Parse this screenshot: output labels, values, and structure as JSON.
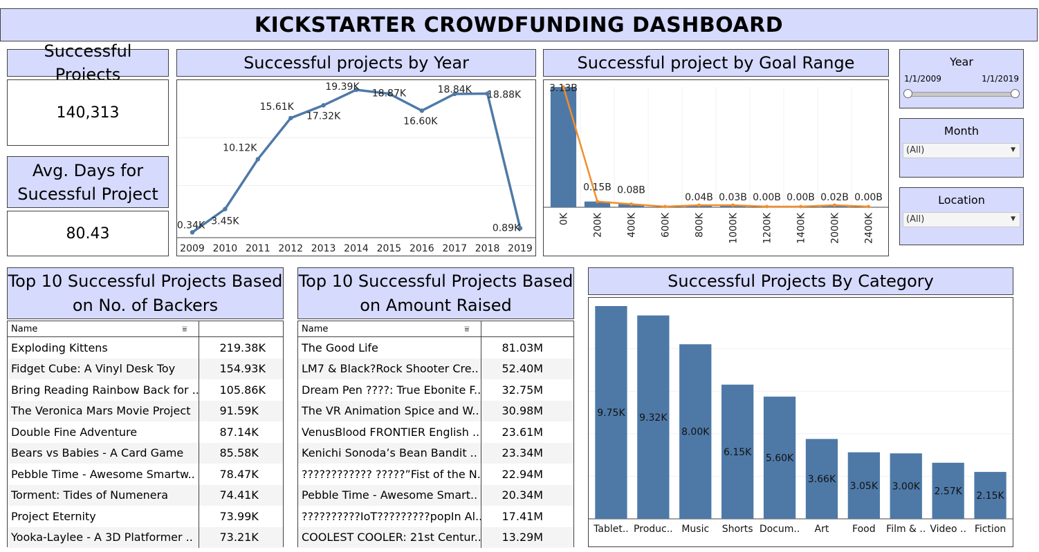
{
  "title": "KICKSTARTER CROWDFUNDING DASHBOARD",
  "kpis": {
    "successful_projects_label": "Successful Projects",
    "successful_projects_value": "140,313",
    "avg_days_label_line1": "Avg. Days for",
    "avg_days_label_line2": "Sucessful Project",
    "avg_days_value": "80.43"
  },
  "year_chart_title": "Successful projects by Year",
  "goal_chart_title": "Successful project by Goal Range",
  "category_chart_title": "Successful Projects By Category",
  "filters": {
    "year": {
      "label": "Year",
      "start": "1/1/2009",
      "end": "1/1/2019"
    },
    "month": {
      "label": "Month",
      "value": "(All)"
    },
    "location": {
      "label": "Location",
      "value": "(All)"
    }
  },
  "tables": {
    "backers": {
      "title_line1": "Top 10 Successful Projects Based",
      "title_line2": "on No. of Backers",
      "column_name": "Name",
      "rows": [
        {
          "name": "Exploding Kittens",
          "value": "219.38K"
        },
        {
          "name": "Fidget Cube: A Vinyl Desk Toy",
          "value": "154.93K"
        },
        {
          "name": "Bring Reading Rainbow Back for ..",
          "value": "105.86K"
        },
        {
          "name": "The Veronica Mars Movie Project",
          "value": "91.59K"
        },
        {
          "name": "Double Fine Adventure",
          "value": "87.14K"
        },
        {
          "name": "Bears vs Babies - A Card Game",
          "value": "85.58K"
        },
        {
          "name": "Pebble Time - Awesome Smartw..",
          "value": "78.47K"
        },
        {
          "name": "Torment: Tides of Numenera",
          "value": "74.41K"
        },
        {
          "name": "Project Eternity",
          "value": "73.99K"
        },
        {
          "name": "Yooka-Laylee - A 3D Platformer ..",
          "value": "73.21K"
        }
      ]
    },
    "amount": {
      "title_line1": "Top 10 Successful Projects Based",
      "title_line2": "on Amount Raised",
      "column_name": "Name",
      "rows": [
        {
          "name": "The Good Life",
          "value": "81.03M"
        },
        {
          "name": "LM7 & Black?Rock Shooter Cre..",
          "value": "52.40M"
        },
        {
          "name": "Dream Pen ????: True Ebonite F..",
          "value": "32.75M"
        },
        {
          "name": "The VR Animation Spice and W..",
          "value": "30.98M"
        },
        {
          "name": "VenusBlood FRONTIER English ..",
          "value": "23.61M"
        },
        {
          "name": "Kenichi Sonoda’s Bean Bandit ..",
          "value": "23.34M"
        },
        {
          "name": "???????????? ?????”Fist of the N..",
          "value": "22.94M"
        },
        {
          "name": "Pebble Time - Awesome Smart..",
          "value": "20.34M"
        },
        {
          "name": "??????????IoT?????????popIn Al..",
          "value": "17.41M"
        },
        {
          "name": "COOLEST COOLER: 21st Centur..",
          "value": "13.29M"
        }
      ]
    }
  },
  "colors": {
    "bar": "#4e79a7",
    "line": "#f28e2b",
    "header_bg": "#d6dafd"
  },
  "chart_data": [
    {
      "type": "line",
      "title": "Successful projects by Year",
      "x": [
        "2009",
        "2010",
        "2011",
        "2012",
        "2013",
        "2014",
        "2015",
        "2016",
        "2017",
        "2018",
        "2019"
      ],
      "values": [
        0.34,
        3.45,
        10.12,
        15.61,
        17.32,
        19.39,
        18.87,
        16.6,
        18.84,
        18.88,
        0.89
      ],
      "labels": [
        "0.34K",
        "3.45K",
        "10.12K",
        "15.61K",
        "17.32K",
        "19.39K",
        "18.87K",
        "16.60K",
        "18.84K",
        "18.88K",
        "0.89K"
      ],
      "unit": "K",
      "ylim": [
        0,
        19.39
      ],
      "grid": true
    },
    {
      "type": "bar",
      "title": "Successful project by Goal Range",
      "categories": [
        "0K",
        "200K",
        "400K",
        "600K",
        "800K",
        "1000K",
        "1200K",
        "1400K",
        "2000K",
        "2400K"
      ],
      "values": [
        3.13,
        0.15,
        0.08,
        0.0,
        0.04,
        0.03,
        0.0,
        0.0,
        0.02,
        0.0
      ],
      "labels": [
        "3.13B",
        "0.15B",
        "0.08B",
        "",
        "0.04B",
        "0.03B",
        "0.00B",
        "0.00B",
        "0.02B",
        "0.00B"
      ],
      "unit": "B",
      "overlay": "line",
      "grid": true
    },
    {
      "type": "bar",
      "title": "Successful Projects By Category",
      "categories": [
        "Tablet..",
        "Produc..",
        "Music",
        "Shorts",
        "Docum..",
        "Art",
        "Food",
        "Film & ..",
        "Video ..",
        "Fiction"
      ],
      "values": [
        9.75,
        9.32,
        8.0,
        6.15,
        5.6,
        3.66,
        3.05,
        3.0,
        2.57,
        2.15
      ],
      "labels": [
        "9.75K",
        "9.32K",
        "8.00K",
        "6.15K",
        "5.60K",
        "3.66K",
        "3.05K",
        "3.00K",
        "2.57K",
        "2.15K"
      ],
      "unit": "K",
      "grid": true
    }
  ]
}
